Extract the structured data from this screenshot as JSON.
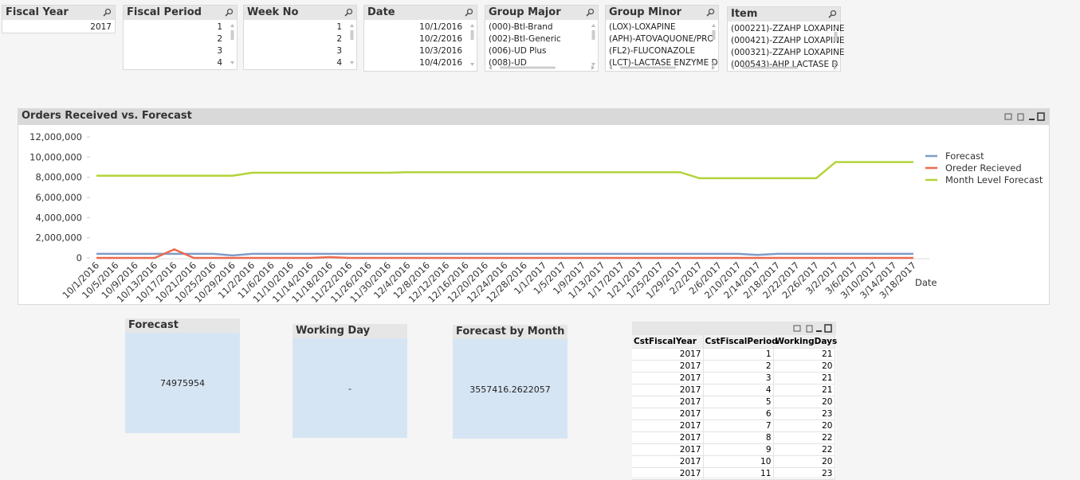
{
  "listboxes": [
    {
      "title": "Fiscal Year",
      "items": [
        "2017"
      ]
    },
    {
      "title": "Fiscal Period",
      "items": [
        "1",
        "2",
        "3",
        "4"
      ]
    },
    {
      "title": "Week No",
      "items": [
        "1",
        "2",
        "3",
        "4"
      ]
    },
    {
      "title": "Date",
      "items": [
        "10/1/2016",
        "10/2/2016",
        "10/3/2016",
        "10/4/2016"
      ]
    },
    {
      "title": "Group Major",
      "items": [
        "(000)-Btl-Brand",
        "(002)-Btl-Generic",
        "(006)-UD Plus",
        "(008)-UD"
      ]
    },
    {
      "title": "Group Minor",
      "items": [
        "(LOX)-LOXAPINE",
        "(APH)-ATOVAQUONE/PRO",
        "(FL2)-FLUCONAZOLE",
        "(LCT)-LACTASE ENZYME D"
      ]
    },
    {
      "title": "Item",
      "items": [
        "(000221)-ZZAHP LOXAPINE",
        "(000421)-ZZAHP LOXAPINE",
        "(000321)-ZZAHP LOXAPINE",
        "(000543)-AHP LACTASE D"
      ]
    }
  ],
  "chart_data": {
    "type": "line",
    "title": "Orders Received vs. Forecast",
    "x_label": "Date",
    "categories": [
      "10/1/2016",
      "10/5/2016",
      "10/9/2016",
      "10/13/2016",
      "10/17/2016",
      "10/21/2016",
      "10/25/2016",
      "10/29/2016",
      "11/2/2016",
      "11/6/2016",
      "11/10/2016",
      "11/14/2016",
      "11/18/2016",
      "11/22/2016",
      "11/26/2016",
      "11/30/2016",
      "12/4/2016",
      "12/8/2016",
      "12/12/2016",
      "12/16/2016",
      "12/20/2016",
      "12/24/2016",
      "12/28/2016",
      "1/1/2017",
      "1/5/2017",
      "1/9/2017",
      "1/13/2017",
      "1/17/2017",
      "1/21/2017",
      "1/25/2017",
      "1/29/2017",
      "2/2/2017",
      "2/6/2017",
      "2/10/2017",
      "2/14/2017",
      "2/18/2017",
      "2/22/2017",
      "2/26/2017",
      "3/2/2017",
      "3/6/2017",
      "3/10/2017",
      "3/14/2017",
      "3/18/2017"
    ],
    "series": [
      {
        "name": "Forecast",
        "color": "#7f9cc6",
        "values": [
          400000,
          400000,
          400000,
          400000,
          400000,
          400000,
          400000,
          250000,
          400000,
          400000,
          400000,
          400000,
          400000,
          400000,
          400000,
          400000,
          400000,
          400000,
          400000,
          400000,
          400000,
          400000,
          400000,
          400000,
          400000,
          400000,
          400000,
          400000,
          400000,
          400000,
          400000,
          400000,
          400000,
          400000,
          300000,
          400000,
          400000,
          400000,
          400000,
          400000,
          400000,
          400000,
          400000
        ]
      },
      {
        "name": "Oreder Recieved",
        "color": "#ec6a4f",
        "values": [
          0,
          0,
          0,
          0,
          850000,
          0,
          0,
          0,
          0,
          0,
          0,
          0,
          80000,
          0,
          0,
          0,
          0,
          0,
          0,
          0,
          0,
          0,
          0,
          0,
          0,
          0,
          0,
          0,
          0,
          0,
          0,
          0,
          0,
          0,
          0,
          0,
          0,
          0,
          0,
          0,
          0,
          0,
          0
        ]
      },
      {
        "name": "Month Level Forecast",
        "color": "#b3d33a",
        "values": [
          8150000,
          8150000,
          8150000,
          8150000,
          8150000,
          8150000,
          8150000,
          8150000,
          8450000,
          8450000,
          8450000,
          8450000,
          8450000,
          8450000,
          8450000,
          8450000,
          8500000,
          8500000,
          8500000,
          8500000,
          8500000,
          8500000,
          8500000,
          8500000,
          8500000,
          8500000,
          8500000,
          8500000,
          8500000,
          8500000,
          8500000,
          7900000,
          7900000,
          7900000,
          7900000,
          7900000,
          7900000,
          7900000,
          9500000,
          9500000,
          9500000,
          9500000,
          9500000
        ]
      }
    ],
    "ylim": [
      0,
      12000000
    ],
    "yticks": [
      0,
      {
        "value": 2000000,
        "label": "2,000,000"
      },
      {
        "value": 4000000,
        "label": "4,000,000"
      },
      {
        "value": 6000000,
        "label": "6,000,000"
      },
      {
        "value": 8000000,
        "label": "8,000,000"
      },
      {
        "value": 10000000,
        "label": "10,000,000"
      },
      {
        "value": 12000000,
        "label": "12,000,000"
      }
    ],
    "legend": "right"
  },
  "text_objects": [
    {
      "title": "Forecast",
      "value": 74975954
    },
    {
      "title": "Working Day",
      "value": "-"
    },
    {
      "title": "Forecast by Month",
      "value": 3557416.2622057
    }
  ],
  "table": {
    "headers": [
      "CstFiscalYear",
      "CstFiscalPeriod",
      "WorkingDays"
    ],
    "rows": [
      [
        2017,
        1,
        21
      ],
      [
        2017,
        2,
        20
      ],
      [
        2017,
        3,
        21
      ],
      [
        2017,
        4,
        21
      ],
      [
        2017,
        5,
        20
      ],
      [
        2017,
        6,
        23
      ],
      [
        2017,
        7,
        20
      ],
      [
        2017,
        8,
        22
      ],
      [
        2017,
        9,
        22
      ],
      [
        2017,
        10,
        20
      ],
      [
        2017,
        11,
        23
      ]
    ]
  }
}
